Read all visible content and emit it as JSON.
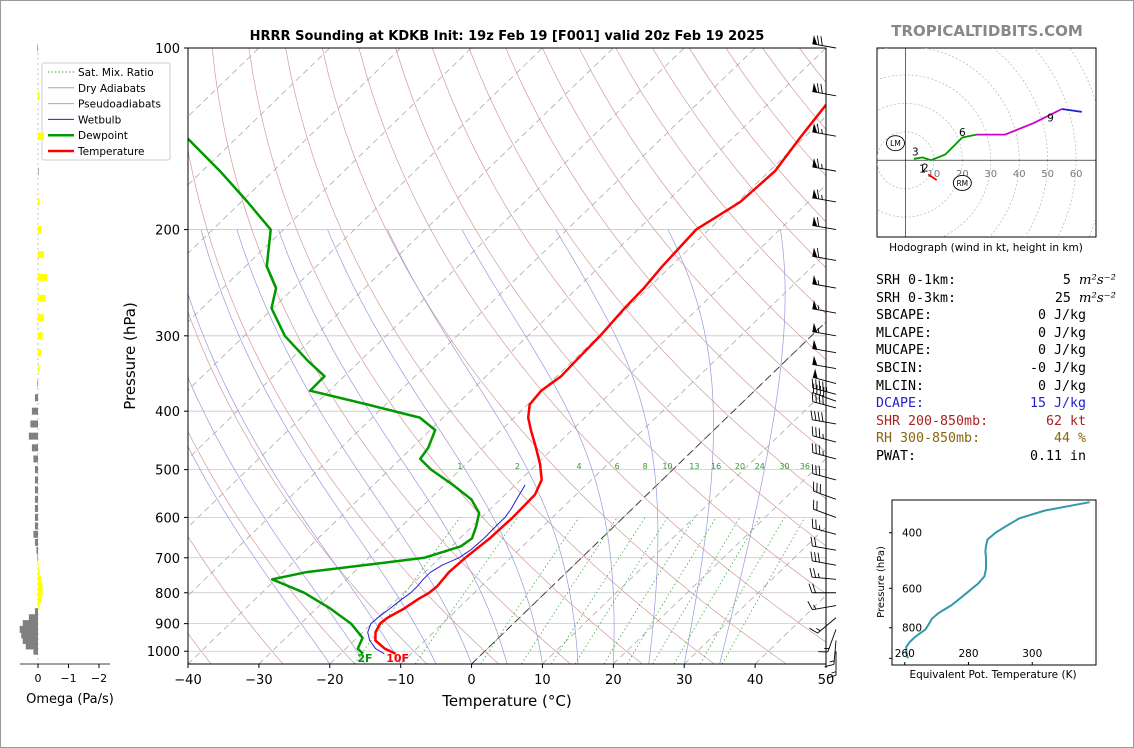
{
  "chart_data": [
    {
      "type": "line",
      "name": "skew-t",
      "title": "HRRR Sounding at KDKB Init: 19z Feb 19 [F001] valid 20z Feb 19 2025",
      "xlabel": "Temperature (°C)",
      "ylabel": "Pressure (hPa)",
      "xlim": [
        -40,
        50
      ],
      "ylim": [
        1050,
        100
      ],
      "y_scale": "log",
      "x_ticks": [
        -40,
        -30,
        -20,
        -10,
        0,
        10,
        20,
        30,
        40,
        50
      ],
      "x_tick_labels": [
        "−40",
        "−30",
        "−20",
        "−10",
        "0",
        "10",
        "20",
        "30",
        "40",
        "50"
      ],
      "y_ticks": [
        100,
        200,
        300,
        400,
        500,
        600,
        700,
        800,
        900,
        1000
      ],
      "y_tick_labels": [
        "100",
        "200",
        "300",
        "400",
        "500",
        "600",
        "700",
        "800",
        "900",
        "1000"
      ],
      "legend_position": "upper-left",
      "legend": [
        {
          "label": "Sat. Mix. Ratio",
          "color": "#3aa63a",
          "style": "dotted"
        },
        {
          "label": "Dry Adiabats",
          "color": "#c49a9a",
          "style": "solid"
        },
        {
          "label": "Pseudoadiabats",
          "color": "#a9a9a9",
          "style": "solid"
        },
        {
          "label": "Wetbulb",
          "color": "#1f1fd4",
          "style": "solid"
        },
        {
          "label": "Dewpoint",
          "color": "#009900",
          "style": "solid"
        },
        {
          "label": "Temperature",
          "color": "#ff0000",
          "style": "solid"
        }
      ],
      "mixing_ratio_labels": [
        "1",
        "2",
        "4",
        "6",
        "8",
        "10",
        "13",
        "16",
        "20",
        "24",
        "30",
        "36"
      ],
      "surface_labels": {
        "dewpoint": "2F",
        "temperature": "10F"
      },
      "temperature": {
        "p": [
          1010,
          990,
          960,
          930,
          900,
          880,
          850,
          820,
          800,
          780,
          760,
          740,
          700,
          650,
          600,
          550,
          520,
          490,
          460,
          430,
          410,
          390,
          370,
          350,
          330,
          300,
          270,
          250,
          230,
          200,
          180,
          160,
          140,
          120,
          110,
          100
        ],
        "t": [
          -12.2,
          -14.5,
          -17,
          -18.2,
          -18.8,
          -18.6,
          -17.6,
          -17,
          -16.4,
          -16.2,
          -16.4,
          -16.6,
          -16.4,
          -15.8,
          -15.6,
          -15.8,
          -17,
          -19.5,
          -22.5,
          -25.8,
          -28,
          -29.7,
          -30.1,
          -29.4,
          -29.6,
          -29.8,
          -30.4,
          -30.6,
          -31.2,
          -31.8,
          -29.6,
          -29.2,
          -30.6,
          -32,
          -33,
          -34
        ]
      },
      "dewpoint": {
        "p": [
          1010,
          990,
          950,
          900,
          850,
          800,
          760,
          740,
          700,
          670,
          650,
          620,
          590,
          560,
          530,
          500,
          480,
          460,
          430,
          410,
          390,
          370,
          350,
          330,
          300,
          270,
          250,
          230,
          200,
          180,
          160,
          140,
          120,
          100
        ],
        "td": [
          -16.8,
          -18.3,
          -19.2,
          -22.9,
          -28,
          -34,
          -40.5,
          -36.8,
          -22.2,
          -18.7,
          -18.3,
          -19.5,
          -21,
          -24.1,
          -28.8,
          -34.1,
          -37.2,
          -37.7,
          -39.3,
          -43.3,
          -52.6,
          -62.7,
          -62.8,
          -67.4,
          -74.3,
          -80.2,
          -82.5,
          -87,
          -91.8,
          -99.1,
          -107.5,
          -117.5,
          -128.3,
          -138.5
        ]
      },
      "wetbulb": {
        "p": [
          1010,
          990,
          960,
          930,
          900,
          880,
          850,
          820,
          800,
          780,
          760,
          740,
          720,
          700,
          680,
          650,
          620,
          600,
          580,
          560,
          530
        ],
        "tw": [
          -13.8,
          -15.8,
          -17.8,
          -19.3,
          -20.1,
          -20,
          -19.6,
          -19.3,
          -19,
          -19,
          -19.2,
          -19.2,
          -18.6,
          -17.3,
          -16.8,
          -16.6,
          -16.7,
          -16.7,
          -17.1,
          -17.7,
          -18.6
        ]
      },
      "winds": {
        "p": [
          1000,
          960,
          920,
          880,
          840,
          800,
          760,
          720,
          680,
          640,
          600,
          560,
          520,
          480,
          450,
          420,
          395,
          385,
          375,
          360,
          340,
          320,
          300,
          275,
          250,
          225,
          200,
          180,
          160,
          140,
          120,
          100
        ],
        "spd_kt": [
          15,
          15,
          15,
          15,
          15,
          20,
          25,
          30,
          20,
          25,
          20,
          30,
          30,
          35,
          35,
          40,
          40,
          40,
          45,
          50,
          50,
          50,
          55,
          55,
          55,
          60,
          60,
          65,
          65,
          65,
          70,
          70
        ],
        "dir_deg": [
          180,
          185,
          200,
          230,
          260,
          270,
          275,
          280,
          280,
          285,
          290,
          290,
          285,
          285,
          285,
          280,
          285,
          290,
          285,
          285,
          280,
          280,
          280,
          280,
          280,
          280,
          280,
          280,
          280,
          280,
          280,
          280
        ]
      }
    },
    {
      "type": "bar",
      "name": "omega",
      "xlabel": "Omega (Pa/s)",
      "xlim": [
        0.3,
        -2.4
      ],
      "x_ticks": [
        0,
        -1,
        -2
      ],
      "x_tick_labels": [
        "0",
        "−1",
        "−2"
      ],
      "p": [
        1000,
        980,
        960,
        940,
        920,
        900,
        880,
        860,
        840,
        820,
        800,
        780,
        760,
        740,
        720,
        700,
        680,
        660,
        640,
        620,
        600,
        580,
        560,
        540,
        520,
        500,
        480,
        460,
        440,
        420,
        400,
        380,
        360,
        340,
        320,
        300,
        280,
        260,
        240,
        220,
        200,
        180,
        160,
        140,
        120,
        100
      ],
      "omega_pas": [
        0.15,
        0.4,
        0.5,
        0.55,
        0.6,
        0.5,
        0.3,
        0.1,
        -0.05,
        -0.1,
        -0.15,
        -0.15,
        -0.1,
        -0.05,
        -0.02,
        0.02,
        0.05,
        0.1,
        0.15,
        0.1,
        0.1,
        0.1,
        0.1,
        0.1,
        0.1,
        0.1,
        0.15,
        0.2,
        0.3,
        0.25,
        0.2,
        0.1,
        0.02,
        -0.05,
        -0.1,
        -0.15,
        -0.2,
        -0.25,
        -0.3,
        -0.2,
        -0.1,
        -0.05,
        0.0,
        -0.2,
        -0.05,
        0.02
      ],
      "positive_color": "#808080",
      "negative_color": "#ffff00"
    },
    {
      "type": "line",
      "name": "hodograph",
      "xlabel": "Hodograph (wind in kt, height in km)",
      "xlim": [
        -10,
        67
      ],
      "ylim": [
        -27,
        40
      ],
      "ring_labels": [
        "10",
        "20",
        "30",
        "40",
        "50",
        "60"
      ],
      "segments": [
        {
          "color": "#ff0000",
          "u": [
            8,
            11
          ],
          "v": [
            -5,
            -7
          ]
        },
        {
          "color": "#009900",
          "u": [
            3,
            6,
            9,
            14,
            20,
            25
          ],
          "v": [
            0.5,
            1,
            0,
            2,
            8,
            9
          ]
        },
        {
          "color": "#cc00cc",
          "u": [
            25,
            35,
            45,
            51,
            55
          ],
          "v": [
            9,
            9,
            13,
            16,
            18
          ]
        },
        {
          "color": "#1f1fd4",
          "u": [
            55,
            62
          ],
          "v": [
            18,
            17
          ]
        }
      ],
      "height_labels": [
        {
          "text": "1",
          "u": 6,
          "v": -3
        },
        {
          "text": "2",
          "u": 7,
          "v": -2.5
        },
        {
          "text": "3",
          "u": 3.5,
          "v": 3
        },
        {
          "text": "6",
          "u": 20,
          "v": 10
        },
        {
          "text": "9",
          "u": 51,
          "v": 15
        }
      ],
      "storm_motion": [
        {
          "text": "LM",
          "u": -3.5,
          "v": 6
        },
        {
          "text": "RM",
          "u": 20,
          "v": -8
        }
      ]
    },
    {
      "type": "line",
      "name": "theta-e",
      "xlabel": "Equivalent Pot. Temperature (K)",
      "ylabel": "Pressure (hPa)",
      "xlim": [
        256,
        320
      ],
      "ylim": [
        1050,
        315
      ],
      "x_ticks": [
        260,
        280,
        300
      ],
      "x_tick_labels": [
        "260",
        "280",
        "300"
      ],
      "y_ticks": [
        400,
        600,
        800
      ],
      "y_tick_labels": [
        "400",
        "600",
        "800"
      ],
      "p": [
        1000,
        960,
        920,
        890,
        860,
        830,
        810,
        780,
        750,
        720,
        700,
        680,
        650,
        620,
        600,
        580,
        550,
        520,
        500,
        480,
        460,
        440,
        420,
        400,
        380,
        360,
        340,
        320
      ],
      "thetae": [
        261,
        260.5,
        260.5,
        261.5,
        263,
        265,
        266.5,
        267.5,
        268.5,
        270.5,
        272.5,
        274.5,
        277,
        279.5,
        281.2,
        283,
        285,
        285.5,
        285.5,
        285.5,
        285.3,
        285.5,
        286,
        288.5,
        292,
        296,
        304,
        318
      ],
      "color": "#3399aa"
    }
  ],
  "watermark": "TROPICALTIDBITS.COM",
  "stats": [
    {
      "label": "SRH 0-1km:",
      "value": "5",
      "unit": "m²s⁻²",
      "color": "#000000"
    },
    {
      "label": "SRH 0-3km:",
      "value": "25",
      "unit": "m²s⁻²",
      "color": "#000000"
    },
    {
      "label": "SBCAPE:",
      "value": "0 J/kg",
      "color": "#000000"
    },
    {
      "label": "MLCAPE:",
      "value": "0 J/kg",
      "color": "#000000"
    },
    {
      "label": "MUCAPE:",
      "value": "0 J/kg",
      "color": "#000000"
    },
    {
      "label": "SBCIN:",
      "value": "-0 J/kg",
      "color": "#000000"
    },
    {
      "label": "MLCIN:",
      "value": "0 J/kg",
      "color": "#000000"
    },
    {
      "label": "DCAPE:",
      "value": "15 J/kg",
      "color": "#2222cc"
    },
    {
      "label": "SHR 200-850mb:",
      "value": "62 kt",
      "color": "#aa2222"
    },
    {
      "label": "RH 300-850mb:",
      "value": "44 %",
      "color": "#886611"
    },
    {
      "label": "PWAT:",
      "value": "0.11 in",
      "color": "#000000"
    }
  ]
}
